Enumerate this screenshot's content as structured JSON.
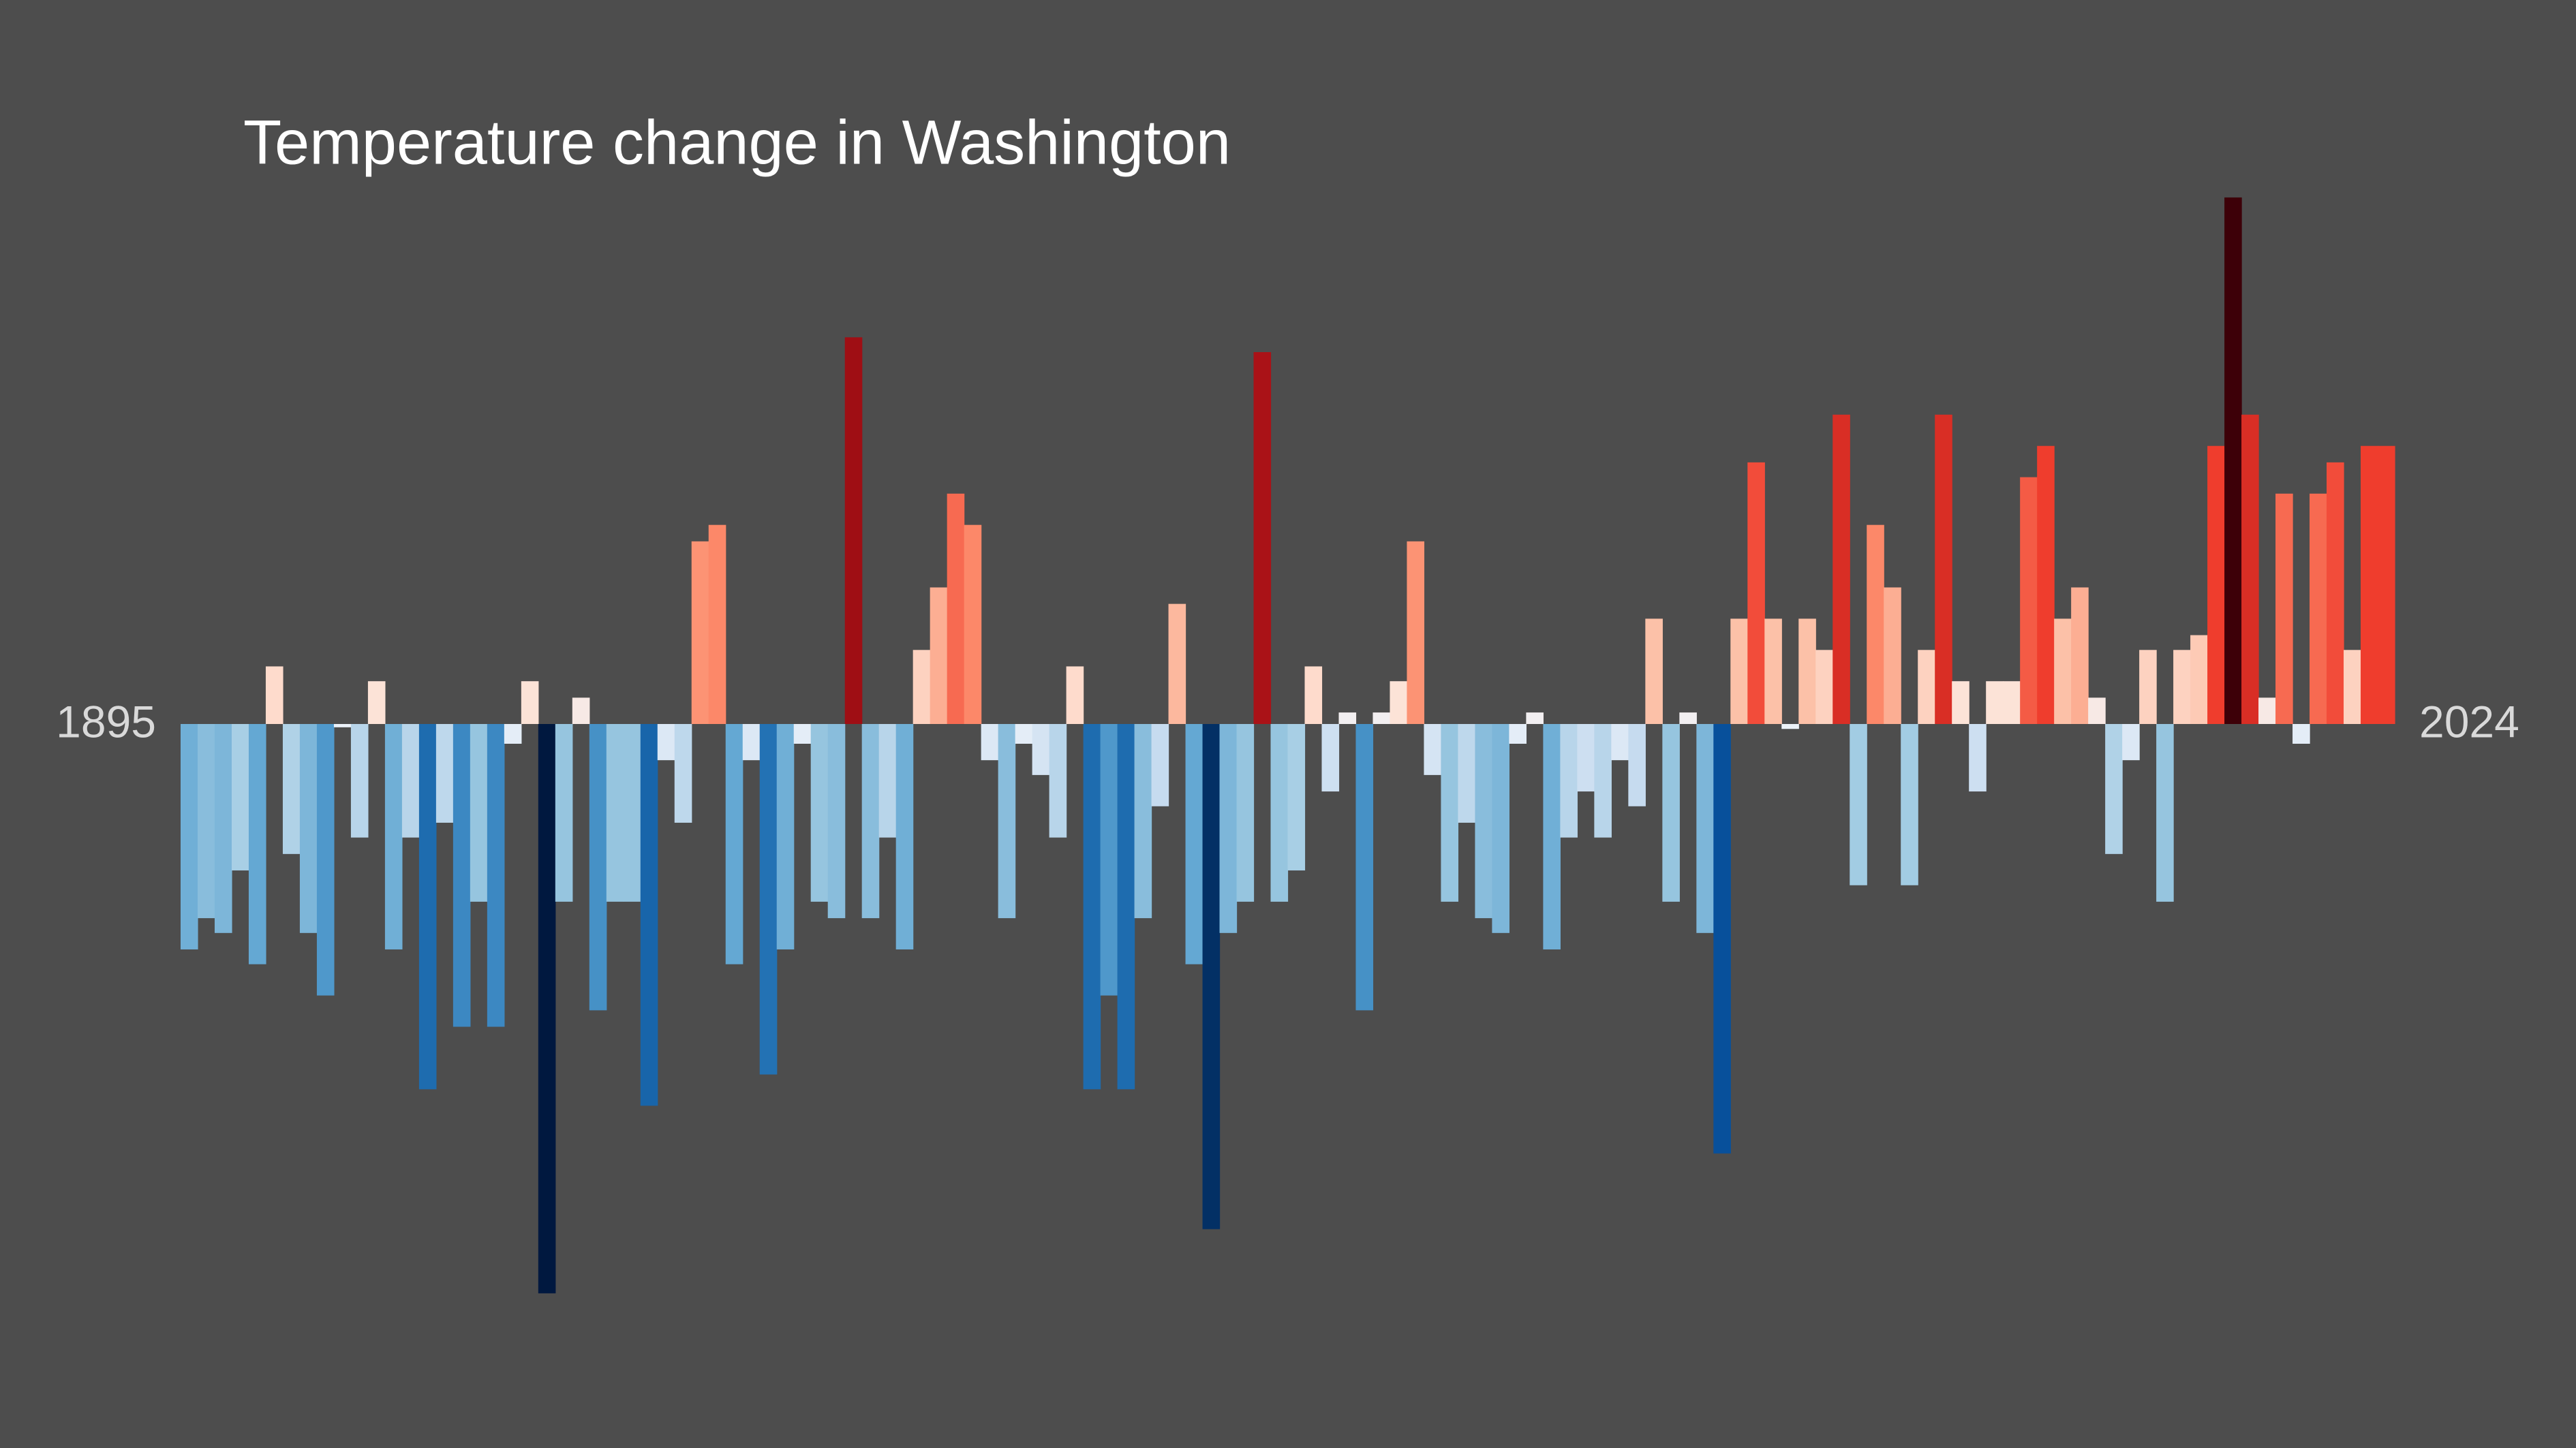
{
  "chart_data": {
    "type": "bar",
    "title": "Temperature change in Washington",
    "x": [
      1895,
      1896,
      1897,
      1898,
      1899,
      1900,
      1901,
      1902,
      1903,
      1904,
      1905,
      1906,
      1907,
      1908,
      1909,
      1910,
      1911,
      1912,
      1913,
      1914,
      1915,
      1916,
      1917,
      1918,
      1919,
      1920,
      1921,
      1922,
      1923,
      1924,
      1925,
      1926,
      1927,
      1928,
      1929,
      1930,
      1931,
      1932,
      1933,
      1934,
      1935,
      1936,
      1937,
      1938,
      1939,
      1940,
      1941,
      1942,
      1943,
      1944,
      1945,
      1946,
      1947,
      1948,
      1949,
      1950,
      1951,
      1952,
      1953,
      1954,
      1955,
      1956,
      1957,
      1958,
      1959,
      1960,
      1961,
      1962,
      1963,
      1964,
      1965,
      1966,
      1967,
      1968,
      1969,
      1970,
      1971,
      1972,
      1973,
      1974,
      1975,
      1976,
      1977,
      1978,
      1979,
      1980,
      1981,
      1982,
      1983,
      1984,
      1985,
      1986,
      1987,
      1988,
      1989,
      1990,
      1991,
      1992,
      1993,
      1994,
      1995,
      1996,
      1997,
      1998,
      1999,
      2000,
      2001,
      2002,
      2003,
      2004,
      2005,
      2006,
      2007,
      2008,
      2009,
      2010,
      2011,
      2012,
      2013,
      2014,
      2015,
      2016,
      2017,
      2018,
      2019,
      2020,
      2021,
      2022,
      2023,
      2024
    ],
    "values": [
      -1.37,
      -1.18,
      -1.27,
      -0.89,
      -1.46,
      0.35,
      -0.79,
      -1.27,
      -1.65,
      -0.02,
      -0.69,
      0.26,
      -1.37,
      -0.69,
      -2.22,
      -0.6,
      -1.84,
      -1.08,
      -1.84,
      -0.12,
      0.26,
      -3.46,
      -1.08,
      0.16,
      -1.74,
      -1.08,
      -1.08,
      -2.32,
      -0.22,
      -0.6,
      1.11,
      1.21,
      -1.46,
      -0.22,
      -2.13,
      -1.37,
      -0.12,
      -1.08,
      -1.18,
      2.35,
      -1.18,
      -0.69,
      -1.37,
      0.45,
      0.83,
      1.4,
      1.21,
      -0.22,
      -1.18,
      -0.12,
      -0.31,
      -0.69,
      0.35,
      -2.22,
      -1.65,
      -2.22,
      -1.18,
      -0.5,
      0.73,
      -1.46,
      -3.07,
      -1.27,
      -1.08,
      2.26,
      -1.08,
      -0.89,
      0.35,
      -0.41,
      0.07,
      -1.74,
      0.07,
      0.26,
      1.11,
      -0.31,
      -1.08,
      -0.6,
      -1.18,
      -1.27,
      -0.12,
      0.07,
      -1.37,
      -0.69,
      -0.41,
      -0.69,
      -0.22,
      -0.5,
      0.64,
      -1.08,
      0.07,
      -1.27,
      -2.61,
      0.64,
      1.59,
      0.64,
      -0.03,
      0.64,
      0.45,
      1.88,
      -0.98,
      1.21,
      0.83,
      -0.98,
      0.45,
      1.88,
      0.26,
      -0.41,
      0.26,
      0.26,
      1.5,
      1.69,
      0.64,
      0.83,
      0.16,
      -0.79,
      -0.22,
      0.45,
      -1.08,
      0.45,
      0.54,
      1.69,
      3.2,
      1.88,
      0.16,
      1.4,
      -0.12,
      1.4,
      1.59,
      0.45,
      1.69,
      1.69
    ],
    "xlim": [
      1895,
      2024
    ],
    "xticks": [
      1895,
      2024
    ],
    "ylim": [
      -4.4,
      4.4
    ],
    "colorscale": [
      [
        -3.4,
        "#00183f"
      ],
      [
        -2.6,
        "#08519c"
      ],
      [
        -2.0,
        "#2b7bba"
      ],
      [
        -1.5,
        "#5fa5d2"
      ],
      [
        -1.0,
        "#a0cbe2"
      ],
      [
        -0.5,
        "#c6dbef"
      ],
      [
        0,
        "#eef3fa"
      ],
      [
        0.3,
        "#fee0d2"
      ],
      [
        0.7,
        "#fcbba1"
      ],
      [
        1.2,
        "#fc8a6a"
      ],
      [
        1.7,
        "#ef3b2c"
      ],
      [
        2.3,
        "#a50f15"
      ],
      [
        3.2,
        "#3d0008"
      ]
    ],
    "background": "#4d4d4d"
  }
}
